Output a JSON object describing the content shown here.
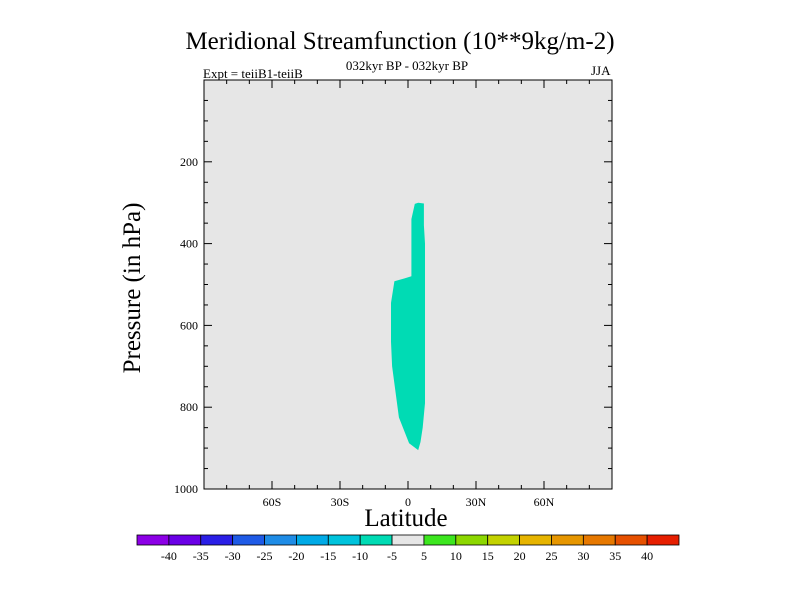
{
  "chart_data": {
    "type": "contour",
    "title": "Meridional Streamfunction (10**9kg/m-2)",
    "left_label": "Expt = teiiB1-teiiB",
    "center_label": "032kyr BP - 032kyr BP",
    "right_label": "JJA",
    "xlabel": "Latitude",
    "ylabel": "Pressure (in hPa)",
    "xlim": [
      -90,
      90
    ],
    "ylim": [
      1000,
      0
    ],
    "x_ticks": [
      {
        "value": -60,
        "label": "60S"
      },
      {
        "value": -30,
        "label": "30S"
      },
      {
        "value": 0,
        "label": "0"
      },
      {
        "value": 30,
        "label": "30N"
      },
      {
        "value": 60,
        "label": "60N"
      }
    ],
    "y_ticks": [
      {
        "value": 200,
        "label": "200"
      },
      {
        "value": 400,
        "label": "400"
      },
      {
        "value": 600,
        "label": "600"
      },
      {
        "value": 800,
        "label": "800"
      },
      {
        "value": 1000,
        "label": "1000"
      }
    ],
    "background_color": "#e6e6e6",
    "shaded_regions": [
      {
        "interval": "-10 to -5",
        "color": "#00dbb4",
        "polygon": [
          [
            4.5,
            300
          ],
          [
            3.0,
            303
          ],
          [
            1.5,
            340
          ],
          [
            1.5,
            480
          ],
          [
            -1.5,
            485
          ],
          [
            -6.0,
            492
          ],
          [
            -7.5,
            545
          ],
          [
            -7.5,
            640
          ],
          [
            -7.0,
            700
          ],
          [
            -4.0,
            825
          ],
          [
            0.5,
            888
          ],
          [
            4.5,
            905
          ],
          [
            5.5,
            885
          ],
          [
            6.5,
            850
          ],
          [
            7.5,
            790
          ],
          [
            7.5,
            740
          ],
          [
            7.5,
            600
          ],
          [
            7.5,
            400
          ],
          [
            7.0,
            355
          ],
          [
            7.0,
            302
          ]
        ]
      }
    ],
    "colorbar": {
      "labels": [
        "-40",
        "-35",
        "-30",
        "-25",
        "-20",
        "-15",
        "-10",
        "-5",
        "5",
        "10",
        "15",
        "20",
        "25",
        "30",
        "35",
        "40"
      ],
      "colors": [
        "#8c00e6",
        "#6a00e6",
        "#2a1ee6",
        "#1e5ae6",
        "#1e8ce6",
        "#00aae6",
        "#00c3dc",
        "#00dbb4",
        "#e6e6e6",
        "#3ce61e",
        "#8cd700",
        "#c3d200",
        "#e6b400",
        "#e69600",
        "#e67800",
        "#e65000",
        "#e61e00"
      ]
    }
  }
}
